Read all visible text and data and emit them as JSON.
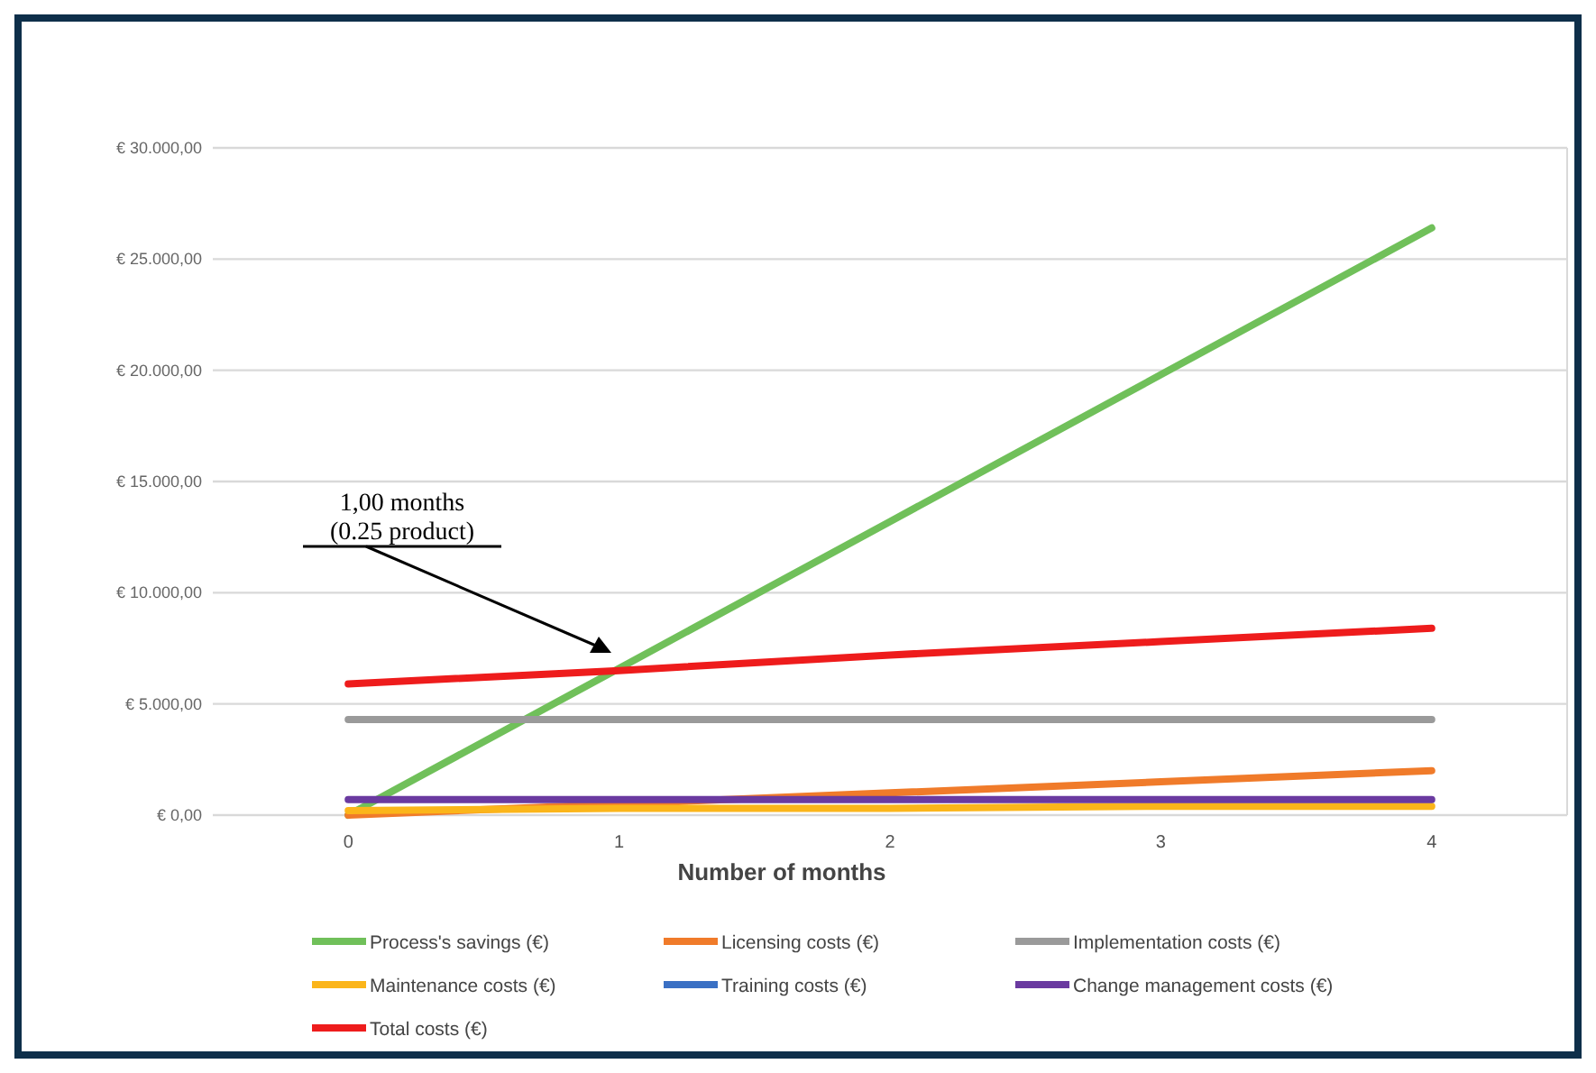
{
  "chart_data": {
    "type": "line",
    "xlabel": "Number of months",
    "x": [
      0,
      1,
      2,
      3,
      4
    ],
    "xlim": [
      -0.5,
      4.5
    ],
    "xticks": [
      0,
      1,
      2,
      3,
      4
    ],
    "ylim": [
      0,
      30000
    ],
    "yticks": [
      {
        "value": 0,
        "label": "€ 0,00"
      },
      {
        "value": 5000,
        "label": "€ 5.000,00"
      },
      {
        "value": 10000,
        "label": "€ 10.000,00"
      },
      {
        "value": 15000,
        "label": "€ 15.000,00"
      },
      {
        "value": 20000,
        "label": "€ 20.000,00"
      },
      {
        "value": 25000,
        "label": "€ 25.000,00"
      },
      {
        "value": 30000,
        "label": "€ 30.000,00"
      }
    ],
    "grid": "y",
    "legend": "bottom",
    "marker": "none",
    "line_style": "solid",
    "series": [
      {
        "name": "Process's savings (€)",
        "color": "#70c05a",
        "values": [
          0,
          6600,
          13200,
          19800,
          26400
        ]
      },
      {
        "name": "Licensing costs (€)",
        "color": "#f07b2a",
        "values": [
          0,
          500,
          1000,
          1500,
          2000
        ]
      },
      {
        "name": "Implementation costs (€)",
        "color": "#9a9a9a",
        "values": [
          4300,
          4300,
          4300,
          4300,
          4300
        ]
      },
      {
        "name": "Maintenance costs (€)",
        "color": "#fbb51a",
        "values": [
          200,
          300,
          300,
          400,
          400
        ]
      },
      {
        "name": "Training costs (€)",
        "color": "#3a70c4",
        "values": [
          null,
          null,
          null,
          null,
          null
        ]
      },
      {
        "name": "Change management costs (€)",
        "color": "#6a3aa0",
        "values": [
          700,
          700,
          700,
          700,
          700
        ]
      },
      {
        "name": "Total costs (€)",
        "color": "#ee1c1c",
        "values": [
          5900,
          6500,
          7200,
          7800,
          8400
        ]
      }
    ],
    "annotations": [
      "1,00 months\n(0.25 product)"
    ]
  }
}
